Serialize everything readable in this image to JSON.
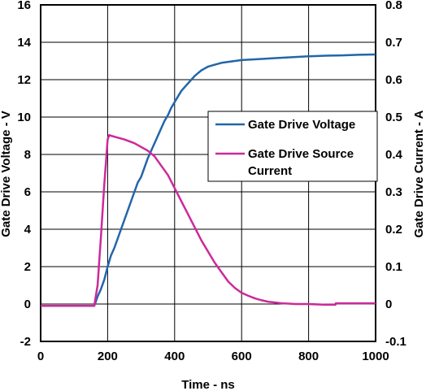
{
  "chart_data": {
    "type": "line",
    "xlabel": "Time - ns",
    "ylabel_left": "Gate Drive Voltage - V",
    "ylabel_right": "Gate Drive Current - A",
    "xlim": [
      0,
      1000
    ],
    "ylim_left": [
      -2,
      16
    ],
    "ylim_right": [
      -0.1,
      0.8
    ],
    "grid": true,
    "legend_position": "right",
    "x_ticks": [
      "0",
      "200",
      "400",
      "600",
      "800",
      "1000"
    ],
    "y_left_ticks": [
      "-2",
      "0",
      "2",
      "4",
      "6",
      "8",
      "10",
      "12",
      "14",
      "16"
    ],
    "y_right_ticks": [
      "-0.1",
      "0",
      "0.1",
      "0.2",
      "0.3",
      "0.4",
      "0.5",
      "0.6",
      "0.7",
      "0.8"
    ],
    "series": [
      {
        "name": "Gate Drive Voltage",
        "axis": "left",
        "color": "#2266aa",
        "x": [
          0,
          160,
          170,
          180,
          190,
          200,
          210,
          220,
          230,
          240,
          250,
          260,
          270,
          280,
          290,
          300,
          310,
          320,
          330,
          340,
          350,
          360,
          370,
          380,
          390,
          400,
          410,
          420,
          430,
          440,
          450,
          460,
          470,
          480,
          490,
          500,
          520,
          540,
          560,
          580,
          600,
          650,
          700,
          750,
          800,
          850,
          900,
          950,
          1000
        ],
        "values": [
          -0.1,
          -0.1,
          0.4,
          0.8,
          1.3,
          2.0,
          2.6,
          3.0,
          3.5,
          4.0,
          4.5,
          5.0,
          5.5,
          6.0,
          6.5,
          6.8,
          7.3,
          7.8,
          8.2,
          8.6,
          9.0,
          9.4,
          9.8,
          10.1,
          10.5,
          10.8,
          11.1,
          11.4,
          11.6,
          11.8,
          12.0,
          12.2,
          12.35,
          12.5,
          12.6,
          12.7,
          12.8,
          12.9,
          12.95,
          13.0,
          13.05,
          13.1,
          13.15,
          13.2,
          13.25,
          13.28,
          13.3,
          13.33,
          13.35
        ]
      },
      {
        "name": "Gate Drive Source Current",
        "axis": "right",
        "color": "#cc2a9a",
        "x": [
          0,
          160,
          170,
          180,
          190,
          200,
          205,
          210,
          230,
          250,
          280,
          300,
          320,
          340,
          360,
          380,
          400,
          420,
          440,
          460,
          480,
          500,
          520,
          540,
          560,
          580,
          600,
          620,
          640,
          660,
          680,
          700,
          720,
          740,
          760,
          780,
          800,
          850,
          880,
          881,
          900,
          950,
          1000
        ],
        "values": [
          -0.005,
          -0.005,
          0.05,
          0.18,
          0.32,
          0.44,
          0.452,
          0.45,
          0.445,
          0.44,
          0.43,
          0.42,
          0.41,
          0.395,
          0.37,
          0.345,
          0.31,
          0.275,
          0.24,
          0.205,
          0.17,
          0.14,
          0.11,
          0.085,
          0.06,
          0.043,
          0.03,
          0.022,
          0.015,
          0.01,
          0.006,
          0.004,
          0.002,
          0.001,
          0.0,
          0.0,
          0.0,
          -0.002,
          -0.002,
          0.002,
          0.002,
          0.002,
          0.002
        ]
      }
    ]
  }
}
